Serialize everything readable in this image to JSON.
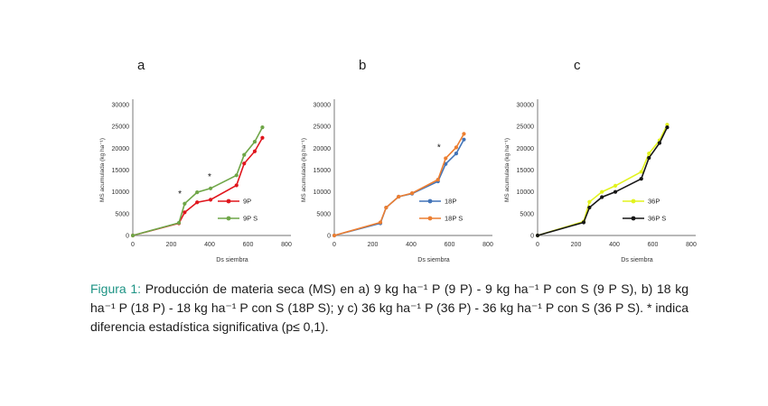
{
  "caption": {
    "prefix": "Figura 1:",
    "text": " Producción de materia seca (MS) en a) 9 kg ha⁻¹ P (9 P) - 9 kg ha⁻¹ P con S (9 P S), b) 18 kg ha⁻¹ P (18 P) - 18 kg ha⁻¹ P con S (18P S); y c) 36 kg ha⁻¹ P (36 P) - 36 kg ha⁻¹ P con S (36 P S). * indica diferencia estadística significativa (p≤ 0,1)."
  },
  "colors": {
    "axis": "#a0a0a0",
    "tick_text": "#333333",
    "annotation": "#111111",
    "caption_accent": "#1d9384"
  },
  "chart_data": [
    {
      "type": "line",
      "panel_label": "a",
      "xlabel": "Ds siembra",
      "ylabel": "MS acumulada (kg ha⁻¹)",
      "xlim": [
        0,
        800
      ],
      "ylim": [
        0,
        30000
      ],
      "xticks": [
        0,
        200,
        400,
        600,
        800
      ],
      "yticks": [
        0,
        5000,
        10000,
        15000,
        20000,
        25000,
        30000
      ],
      "grid": false,
      "legend_position": "inside-right",
      "x": [
        0,
        240,
        270,
        335,
        405,
        540,
        580,
        635,
        675
      ],
      "series": [
        {
          "name": "9P",
          "color": "#e0161d",
          "values": [
            0,
            2800,
            5300,
            7600,
            8200,
            11500,
            16500,
            19300,
            22400
          ]
        },
        {
          "name": "9P S",
          "color": "#6fa648",
          "values": [
            0,
            2900,
            7300,
            9900,
            10800,
            13800,
            18500,
            21500,
            24800
          ]
        }
      ],
      "annotations": [
        {
          "x": 245,
          "y": 9500,
          "text": "*"
        },
        {
          "x": 400,
          "y": 13500,
          "text": "*"
        }
      ]
    },
    {
      "type": "line",
      "panel_label": "b",
      "xlabel": "Ds siembra",
      "ylabel": "MS acumulada (kg ha⁻¹)",
      "xlim": [
        0,
        800
      ],
      "ylim": [
        0,
        30000
      ],
      "xticks": [
        0,
        200,
        400,
        600,
        800
      ],
      "yticks": [
        0,
        5000,
        10000,
        15000,
        20000,
        25000,
        30000
      ],
      "grid": false,
      "legend_position": "inside-right",
      "x": [
        0,
        240,
        270,
        335,
        405,
        540,
        580,
        635,
        675
      ],
      "series": [
        {
          "name": "18P",
          "color": "#4274b8",
          "values": [
            0,
            2800,
            6400,
            8900,
            9600,
            12400,
            16400,
            18800,
            22000
          ]
        },
        {
          "name": "18P S",
          "color": "#ec7e31",
          "values": [
            0,
            3000,
            6400,
            8900,
            9700,
            12800,
            17700,
            20200,
            23300
          ]
        }
      ],
      "annotations": [
        {
          "x": 545,
          "y": 20200,
          "text": "*"
        }
      ]
    },
    {
      "type": "line",
      "panel_label": "c",
      "xlabel": "Ds siembra",
      "ylabel": "MS acumulada (kg ha⁻¹)",
      "xlim": [
        0,
        800
      ],
      "ylim": [
        0,
        30000
      ],
      "xticks": [
        0,
        200,
        400,
        600,
        800
      ],
      "yticks": [
        0,
        5000,
        10000,
        15000,
        20000,
        25000,
        30000
      ],
      "grid": false,
      "legend_position": "inside-right",
      "x": [
        0,
        240,
        270,
        335,
        405,
        540,
        580,
        635,
        675
      ],
      "series": [
        {
          "name": "36P",
          "color": "#e2f31e",
          "values": [
            0,
            3200,
            7700,
            10000,
            11400,
            14600,
            18800,
            21800,
            25400
          ]
        },
        {
          "name": "36P S",
          "color": "#161616",
          "values": [
            0,
            3000,
            6400,
            8800,
            10000,
            13000,
            17800,
            21200,
            24800
          ]
        }
      ],
      "annotations": []
    }
  ]
}
